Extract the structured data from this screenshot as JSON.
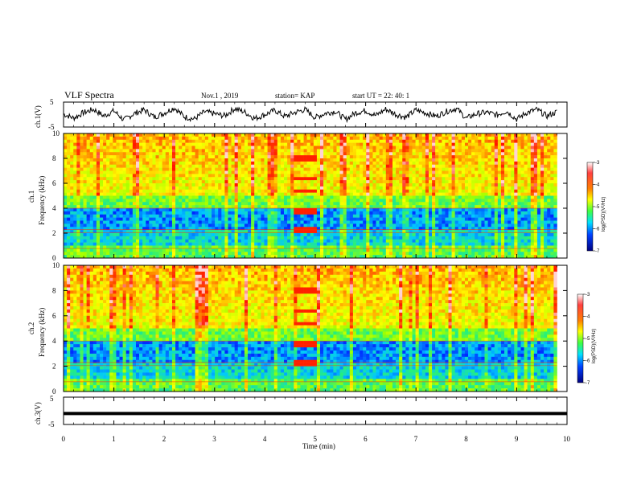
{
  "header": {
    "title": "VLF Spectra",
    "date": "Nov.1 , 2019",
    "station": "station= KAP",
    "start": "start UT = 22: 40: 1"
  },
  "chart_data": [
    {
      "type": "line",
      "panel": "ch1-voltage",
      "ylabel": "ch.1(V)",
      "ylim": [
        -5,
        5
      ],
      "yticks": [
        "5",
        "-5"
      ],
      "xlim": [
        0,
        10
      ],
      "series": [
        {
          "values": [
            0.2,
            -1.4,
            0.8,
            2.1,
            -0.6,
            1.5,
            -2.2,
            0.4,
            1.9,
            -1.0,
            0.6,
            2.8,
            -0.9,
            -1.8,
            1.1,
            0.3,
            -0.5,
            2.4,
            1.0,
            -1.6,
            0.0,
            1.7,
            -0.8,
            0.9,
            2.0,
            -1.2,
            0.5,
            1.3,
            -2.0,
            0.7,
            1.6,
            -0.4,
            2.2,
            0.1,
            -1.1,
            1.8,
            0.6,
            -0.7,
            1.2,
            2.5,
            -1.5,
            0.3,
            0.9,
            -0.2,
            1.4,
            -1.9,
            0.8,
            2.0,
            -0.6,
            1.1
          ]
        }
      ]
    },
    {
      "type": "heatmap",
      "panel": "ch1-spectrogram",
      "ylabel": "ch.1",
      "ylabel2": "Frequency (kHz)",
      "ylim": [
        0,
        10
      ],
      "yticks": [
        "0",
        "2",
        "4",
        "6",
        "8",
        "10"
      ],
      "xlim": [
        0,
        10
      ],
      "colorbar": {
        "label": "log(PSD)(V²/Hz)",
        "range": [
          -7,
          -3
        ],
        "ticks": [
          "-3",
          "-4",
          "-5",
          "-6",
          "-7"
        ]
      }
    },
    {
      "type": "heatmap",
      "panel": "ch2-spectrogram",
      "ylabel": "ch.2",
      "ylabel2": "Frequency (kHz)",
      "ylim": [
        0,
        10
      ],
      "yticks": [
        "0",
        "2",
        "4",
        "6",
        "8",
        "10"
      ],
      "xlim": [
        0,
        10
      ],
      "colorbar": {
        "label": "log(PSD)(V²/Hz)",
        "range": [
          -7,
          -3
        ],
        "ticks": [
          "-3",
          "-4",
          "-5",
          "-6",
          "-7"
        ]
      }
    },
    {
      "type": "line",
      "panel": "ch3-voltage",
      "ylabel": "ch.3(V)",
      "ylim": [
        -5,
        5
      ],
      "yticks": [
        "5",
        "-5"
      ],
      "xlim": [
        0,
        10
      ],
      "series": [
        {
          "values": [
            -1.0,
            -1.0
          ]
        }
      ]
    }
  ],
  "xaxis": {
    "label": "Time (min)",
    "ticks": [
      "0",
      "1",
      "2",
      "3",
      "4",
      "5",
      "6",
      "7",
      "8",
      "9",
      "10"
    ]
  },
  "colors": {
    "background": "#ffffff",
    "trace": "#000000",
    "colormap": [
      "#000080",
      "#0000ff",
      "#00aaff",
      "#00ff80",
      "#c0ff00",
      "#ffff00",
      "#ff8000",
      "#ff0000",
      "#ffe0e0"
    ]
  }
}
